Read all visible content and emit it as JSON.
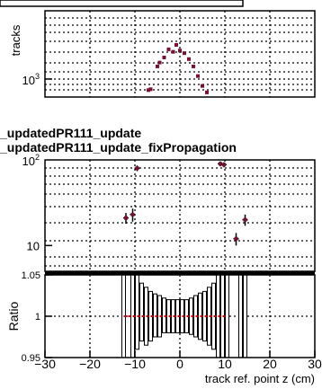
{
  "legend": {
    "line1": "_updatedPR111_update",
    "line2": "_updatedPR111_update_fixPropagation"
  },
  "colors": {
    "marker": "#7a1030",
    "ratio_marker": "#cc0000",
    "errorbar": "#000000"
  },
  "chart_data": [
    {
      "type": "scatter",
      "panel": "top",
      "ylabel": "tracks",
      "yscale": "log",
      "yticklabels": [
        "10³"
      ],
      "grid": true,
      "points": [
        {
          "x": -7.0,
          "y": 700
        },
        {
          "x": -6.5,
          "y": 720
        },
        {
          "x": -5.0,
          "y": 1500
        },
        {
          "x": -4.5,
          "y": 1700
        },
        {
          "x": -3.5,
          "y": 2000
        },
        {
          "x": -2.5,
          "y": 2600
        },
        {
          "x": -1.5,
          "y": 2400
        },
        {
          "x": -0.8,
          "y": 3000
        },
        {
          "x": 0.0,
          "y": 2500
        },
        {
          "x": 1.0,
          "y": 2300
        },
        {
          "x": 2.0,
          "y": 1900
        },
        {
          "x": 3.0,
          "y": 1500
        },
        {
          "x": 4.0,
          "y": 1100
        },
        {
          "x": 5.0,
          "y": 800
        },
        {
          "x": 6.0,
          "y": 650
        }
      ]
    },
    {
      "type": "scatter",
      "panel": "middle",
      "yscale": "log",
      "yticklabels": [
        "10",
        "10²"
      ],
      "grid": true,
      "points": [
        {
          "x": -12.0,
          "y": 21,
          "err": 3
        },
        {
          "x": -10.5,
          "y": 23,
          "err": 4
        },
        {
          "x": -9.5,
          "y": 80,
          "err": 6
        },
        {
          "x": 9.0,
          "y": 90,
          "err": 6
        },
        {
          "x": 9.8,
          "y": 88,
          "err": 6
        },
        {
          "x": 12.5,
          "y": 12,
          "err": 2
        },
        {
          "x": 14.5,
          "y": 20,
          "err": 3
        }
      ]
    },
    {
      "type": "scatter",
      "panel": "ratio",
      "ylabel": "Ratio",
      "xlabel": "track ref. point z (cm)",
      "xlim": [
        -30,
        30
      ],
      "ylim": [
        0.95,
        1.05
      ],
      "xticklabels": [
        "−30",
        "−20",
        "−10",
        "0",
        "10",
        "20",
        "30"
      ],
      "yticklabels": [
        "0.95",
        "1",
        "1.05"
      ],
      "grid": true,
      "ratio_value": 1.0,
      "errorbars": [
        {
          "x": -12.5,
          "lo": 0.95,
          "hi": 1.05
        },
        {
          "x": -10.5,
          "lo": 0.95,
          "hi": 1.05
        },
        {
          "x": -9.5,
          "lo": 0.96,
          "hi": 1.05
        },
        {
          "x": -8.5,
          "lo": 0.97,
          "hi": 1.04
        },
        {
          "x": -7.5,
          "lo": 0.965,
          "hi": 1.035
        },
        {
          "x": -6.5,
          "lo": 0.97,
          "hi": 1.03
        },
        {
          "x": -5.5,
          "lo": 0.975,
          "hi": 1.027
        },
        {
          "x": -4.5,
          "lo": 0.975,
          "hi": 1.025
        },
        {
          "x": -3.5,
          "lo": 0.98,
          "hi": 1.022
        },
        {
          "x": -2.5,
          "lo": 0.98,
          "hi": 1.02
        },
        {
          "x": -1.5,
          "lo": 0.98,
          "hi": 1.02
        },
        {
          "x": -0.5,
          "lo": 0.98,
          "hi": 1.02
        },
        {
          "x": 0.5,
          "lo": 0.98,
          "hi": 1.02
        },
        {
          "x": 1.5,
          "lo": 0.98,
          "hi": 1.02
        },
        {
          "x": 2.5,
          "lo": 0.978,
          "hi": 1.022
        },
        {
          "x": 3.5,
          "lo": 0.975,
          "hi": 1.025
        },
        {
          "x": 4.5,
          "lo": 0.972,
          "hi": 1.028
        },
        {
          "x": 5.5,
          "lo": 0.97,
          "hi": 1.03
        },
        {
          "x": 6.5,
          "lo": 0.965,
          "hi": 1.035
        },
        {
          "x": 7.5,
          "lo": 0.96,
          "hi": 1.04
        },
        {
          "x": 8.5,
          "lo": 0.95,
          "hi": 1.05
        },
        {
          "x": 9.5,
          "lo": 0.95,
          "hi": 1.05
        },
        {
          "x": 10.5,
          "lo": 0.95,
          "hi": 1.05
        },
        {
          "x": 13.5,
          "lo": 0.95,
          "hi": 1.05
        },
        {
          "x": 14.5,
          "lo": 0.95,
          "hi": 1.05
        }
      ]
    }
  ]
}
